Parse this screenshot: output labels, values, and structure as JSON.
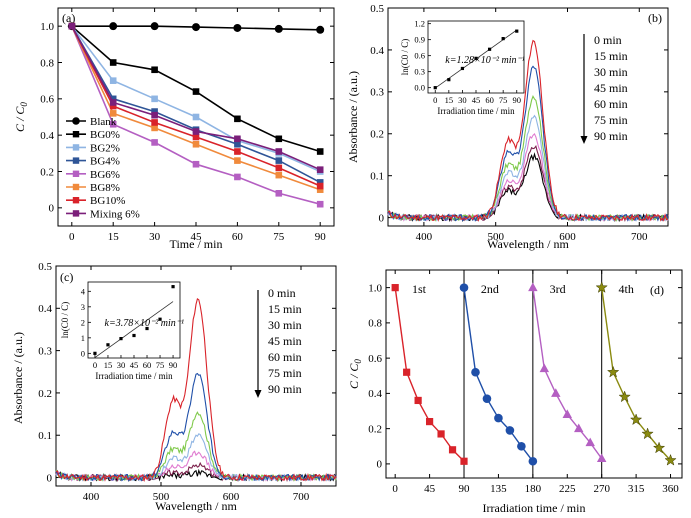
{
  "chart_data": [
    {
      "panel": "(a)",
      "type": "line",
      "xlabel": "Time / min",
      "ylabel": "C / C0",
      "ylabel_main": "C",
      "ylabel_sub": "0",
      "x": [
        0,
        15,
        30,
        45,
        60,
        75,
        90
      ],
      "xlim": [
        -5,
        95
      ],
      "ylim": [
        -0.1,
        1.1
      ],
      "xticks": [
        0,
        15,
        30,
        45,
        60,
        75,
        90
      ],
      "yticks": [
        0.0,
        0.2,
        0.4,
        0.6,
        0.8,
        1.0
      ],
      "xtick_labels": [
        "0",
        "15",
        "30",
        "45",
        "60",
        "75",
        "90"
      ],
      "ytick_labels": [
        "0",
        "0.2",
        "0.4",
        "0.6",
        "0.8",
        "1.0"
      ],
      "legend_position": "bottom-left",
      "series": [
        {
          "name": "Blank",
          "color": "#000000",
          "marker": "circle",
          "values": [
            1.0,
            1.0,
            1.0,
            0.995,
            0.99,
            0.985,
            0.98
          ]
        },
        {
          "name": "BG0%",
          "color": "#000000",
          "marker": "square",
          "values": [
            1.0,
            0.8,
            0.76,
            0.64,
            0.49,
            0.38,
            0.31
          ]
        },
        {
          "name": "BG2%",
          "color": "#8fb5e3",
          "marker": "square",
          "values": [
            1.0,
            0.7,
            0.6,
            0.5,
            0.37,
            0.3,
            0.2
          ]
        },
        {
          "name": "BG4%",
          "color": "#2f5597",
          "marker": "square",
          "values": [
            1.0,
            0.6,
            0.53,
            0.43,
            0.35,
            0.26,
            0.14
          ]
        },
        {
          "name": "BG6%",
          "color": "#b45fc2",
          "marker": "square",
          "values": [
            1.0,
            0.46,
            0.36,
            0.24,
            0.17,
            0.08,
            0.02
          ]
        },
        {
          "name": "BG8%",
          "color": "#f08a3c",
          "marker": "square",
          "values": [
            1.0,
            0.52,
            0.44,
            0.35,
            0.26,
            0.18,
            0.1
          ]
        },
        {
          "name": "BG10%",
          "color": "#d9232a",
          "marker": "square",
          "values": [
            1.0,
            0.56,
            0.47,
            0.39,
            0.31,
            0.22,
            0.12
          ]
        },
        {
          "name": "Mixing 6%",
          "color": "#7b1f7a",
          "marker": "square",
          "values": [
            1.0,
            0.58,
            0.51,
            0.42,
            0.38,
            0.31,
            0.21
          ]
        }
      ]
    },
    {
      "panel": "(b)",
      "type": "line",
      "xlabel": "Wavelength / nm",
      "ylabel": "Absorbance / (a.u.)",
      "xlim": [
        350,
        740
      ],
      "ylim": [
        -0.02,
        0.5
      ],
      "xticks": [
        400,
        500,
        600,
        700
      ],
      "yticks": [
        0.0,
        0.1,
        0.2,
        0.3,
        0.4,
        0.5
      ],
      "xtick_labels": [
        "400",
        "500",
        "600",
        "700"
      ],
      "ytick_labels": [
        "0",
        "0.1",
        "0.2",
        "0.3",
        "0.4",
        "0.5"
      ],
      "legend_labels": [
        "0  min",
        "15 min",
        "30 min",
        "45 min",
        "60 min",
        "75 min",
        "90 min"
      ],
      "series": [
        {
          "name": "0 min",
          "color": "#d9232a",
          "peak": 0.42
        },
        {
          "name": "15 min",
          "color": "#1f4fa8",
          "peak": 0.36
        },
        {
          "name": "30 min",
          "color": "#7fc94a",
          "peak": 0.29
        },
        {
          "name": "45 min",
          "color": "#8fb5e3",
          "peak": 0.24
        },
        {
          "name": "60 min",
          "color": "#e07bd0",
          "peak": 0.2
        },
        {
          "name": "75 min",
          "color": "#7b1f4a",
          "peak": 0.17
        },
        {
          "name": "90 min",
          "color": "#000000",
          "peak": 0.145
        }
      ],
      "inset": {
        "xlabel": "Irradiation time / min",
        "ylabel": "ln(C0 / C)",
        "annotation": "k=1.28×10⁻² min⁻¹",
        "x": [
          0,
          15,
          30,
          45,
          60,
          75,
          90
        ],
        "y": [
          0.0,
          0.15,
          0.36,
          0.55,
          0.72,
          0.92,
          1.06
        ],
        "xlim": [
          -8,
          98
        ],
        "ylim": [
          -0.1,
          1.25
        ],
        "xticks": [
          0,
          15,
          30,
          45,
          60,
          75,
          90
        ],
        "yticks": [
          0.0,
          0.3,
          0.6,
          0.9,
          1.2
        ],
        "xtick_labels": [
          "0",
          "15",
          "30",
          "45",
          "60",
          "75",
          "90"
        ],
        "ytick_labels": [
          "0.0",
          "0.3",
          "0.6",
          "0.9",
          "1.2"
        ]
      }
    },
    {
      "panel": "(c)",
      "type": "line",
      "xlabel": "Wavelength / nm",
      "ylabel": "Absorbance / (a.u.)",
      "xlim": [
        350,
        750
      ],
      "ylim": [
        -0.02,
        0.5
      ],
      "xticks": [
        400,
        500,
        600,
        700
      ],
      "yticks": [
        0.0,
        0.1,
        0.2,
        0.3,
        0.4,
        0.5
      ],
      "xtick_labels": [
        "400",
        "500",
        "600",
        "700"
      ],
      "ytick_labels": [
        "0",
        "0.1",
        "0.2",
        "0.3",
        "0.4",
        "0.5"
      ],
      "legend_labels": [
        "0  min",
        "15 min",
        "30 min",
        "45 min",
        "60 min",
        "75 min",
        "90 min"
      ],
      "series": [
        {
          "name": "0 min",
          "color": "#d9232a",
          "peak": 0.42
        },
        {
          "name": "15 min",
          "color": "#1f4fa8",
          "peak": 0.245
        },
        {
          "name": "30 min",
          "color": "#7fc94a",
          "peak": 0.155
        },
        {
          "name": "45 min",
          "color": "#8fb5e3",
          "peak": 0.1
        },
        {
          "name": "60 min",
          "color": "#e07bd0",
          "peak": 0.06
        },
        {
          "name": "75 min",
          "color": "#7b1f4a",
          "peak": 0.03
        },
        {
          "name": "90 min",
          "color": "#000000",
          "peak": 0.01
        }
      ],
      "inset": {
        "xlabel": "Irradiation time / min",
        "ylabel": "ln(C0 / C)",
        "annotation": "k=3.78×10⁻² min⁻¹",
        "x": [
          0,
          15,
          30,
          45,
          60,
          75,
          90
        ],
        "y": [
          0.0,
          0.55,
          0.95,
          1.15,
          1.6,
          2.2,
          4.3
        ],
        "xlim": [
          -8,
          98
        ],
        "ylim": [
          -0.3,
          4.6
        ],
        "xticks": [
          0,
          15,
          30,
          45,
          60,
          75,
          90
        ],
        "yticks": [
          0,
          1,
          2,
          3,
          4
        ],
        "xtick_labels": [
          "0",
          "15",
          "30",
          "45",
          "60",
          "75",
          "90"
        ],
        "ytick_labels": [
          "0",
          "1",
          "2",
          "3",
          "4"
        ]
      }
    },
    {
      "panel": "(d)",
      "type": "line",
      "xlabel": "Irradiation time / min",
      "ylabel": "C / C0",
      "ylabel_main": "C",
      "ylabel_sub": "0",
      "xlim": [
        -12,
        375
      ],
      "ylim": [
        -0.08,
        1.1
      ],
      "xticks": [
        0,
        45,
        90,
        135,
        180,
        225,
        270,
        315,
        360
      ],
      "yticks": [
        0.0,
        0.2,
        0.4,
        0.6,
        0.8,
        1.0
      ],
      "xtick_labels": [
        "0",
        "45",
        "90",
        "135",
        "180",
        "225",
        "270",
        "315",
        "360"
      ],
      "ytick_labels": [
        "0",
        "0.2",
        "0.4",
        "0.6",
        "0.8",
        "1.0"
      ],
      "separators": [
        90,
        180,
        270
      ],
      "cycle_labels": [
        "1st",
        "2nd",
        "3rd",
        "4th"
      ],
      "series": [
        {
          "name": "1st",
          "color": "#d9232a",
          "marker": "square",
          "x": [
            0,
            15,
            30,
            45,
            60,
            75,
            90
          ],
          "values": [
            1.0,
            0.52,
            0.36,
            0.24,
            0.17,
            0.08,
            0.015
          ]
        },
        {
          "name": "2nd",
          "color": "#1f4fa8",
          "marker": "circle",
          "x": [
            90,
            105,
            120,
            135,
            150,
            165,
            180
          ],
          "values": [
            1.0,
            0.52,
            0.37,
            0.26,
            0.19,
            0.1,
            0.015
          ]
        },
        {
          "name": "3rd",
          "color": "#b45fc2",
          "marker": "triangle",
          "x": [
            180,
            195,
            210,
            225,
            240,
            255,
            270
          ],
          "values": [
            1.0,
            0.54,
            0.4,
            0.28,
            0.2,
            0.12,
            0.03
          ]
        },
        {
          "name": "4th",
          "color": "#8a8a10",
          "marker": "star",
          "x": [
            270,
            285,
            300,
            315,
            330,
            345,
            360
          ],
          "values": [
            1.0,
            0.52,
            0.38,
            0.25,
            0.17,
            0.09,
            0.02
          ]
        }
      ]
    }
  ]
}
